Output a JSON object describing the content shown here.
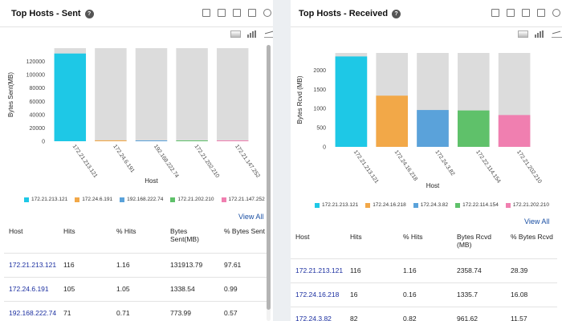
{
  "sent": {
    "title": "Top Hosts - Sent",
    "help": "?",
    "view_all": "View All",
    "table": {
      "headers": [
        "Host",
        "Hits",
        "% Hits",
        "Bytes Sent(MB)",
        "% Bytes Sent"
      ],
      "rows": [
        [
          "172.21.213.121",
          "116",
          "1.16",
          "131913.79",
          "97.61"
        ],
        [
          "172.24.6.191",
          "105",
          "1.05",
          "1338.54",
          "0.99"
        ],
        [
          "192.168.222.74",
          "71",
          "0.71",
          "773.99",
          "0.57"
        ]
      ]
    }
  },
  "received": {
    "title": "Top Hosts - Received",
    "help": "?",
    "view_all": "View All",
    "table": {
      "headers": [
        "Host",
        "Hits",
        "% Hits",
        "Bytes Rcvd (MB)",
        "% Bytes Rcvd"
      ],
      "rows": [
        [
          "172.21.213.121",
          "116",
          "1.16",
          "2358.74",
          "28.39"
        ],
        [
          "172.24.16.218",
          "16",
          "0.16",
          "1335.7",
          "16.08"
        ],
        [
          "172.24.3.82",
          "82",
          "0.82",
          "961.62",
          "11.57"
        ]
      ]
    }
  },
  "toolbar_icons": [
    "mail-icon",
    "pdf-icon",
    "csv-icon",
    "report-icon",
    "refresh-icon",
    "expand-icon"
  ],
  "chart_tool_icons": [
    "area-chart-icon",
    "bar-chart-icon",
    "line-chart-icon"
  ],
  "chart_data": [
    {
      "type": "bar",
      "title": "",
      "xlabel": "Host",
      "ylabel": "Bytes Sent(MB)",
      "categories": [
        "172.21.213.121",
        "172.24.6.191",
        "192.168.222.74",
        "172.21.202.210",
        "172.21.147.252"
      ],
      "values": [
        131913.79,
        1338.54,
        773.99,
        450,
        300
      ],
      "ylim": [
        0,
        140000
      ],
      "yticks": [
        0,
        20000,
        40000,
        60000,
        80000,
        100000,
        120000
      ],
      "colors": [
        "#1ec8e6",
        "#f2a848",
        "#5aa2da",
        "#5fc16a",
        "#f07fb0"
      ],
      "background_bar_color": "#dcdcdc",
      "legend": "bottom",
      "grid": false
    },
    {
      "type": "bar",
      "title": "",
      "xlabel": "Host",
      "ylabel": "Bytes Rcvd (MB)",
      "categories": [
        "172.21.213.121",
        "172.24.16.218",
        "172.24.3.82",
        "172.22.114.154",
        "172.21.202.210"
      ],
      "values": [
        2358.74,
        1335.7,
        961.62,
        950,
        830
      ],
      "ylim": [
        0,
        2450
      ],
      "yticks": [
        0,
        500,
        1000,
        1500,
        2000
      ],
      "colors": [
        "#1ec8e6",
        "#f2a848",
        "#5aa2da",
        "#5fc16a",
        "#f07fb0"
      ],
      "background_bar_color": "#dcdcdc",
      "legend": "bottom",
      "grid": false
    }
  ]
}
